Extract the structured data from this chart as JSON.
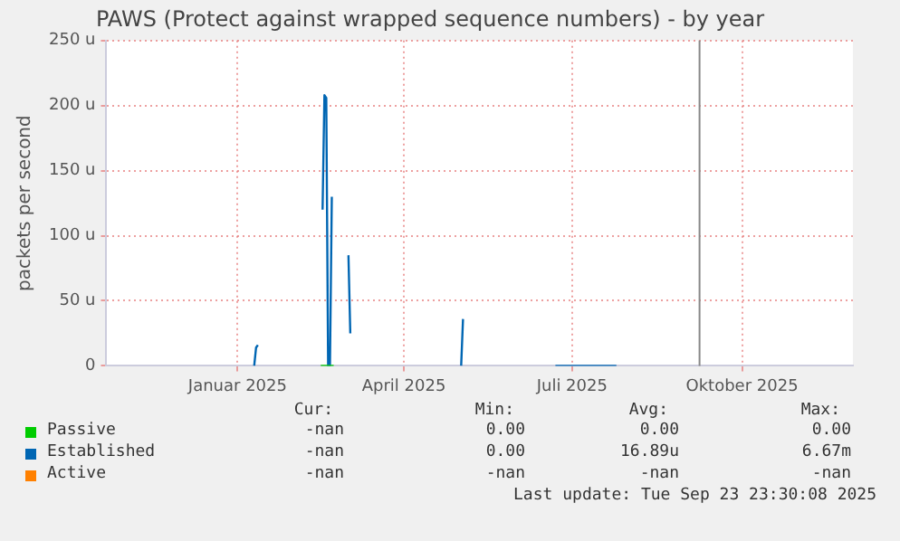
{
  "chart_data": {
    "type": "line",
    "title": "PAWS (Protect against wrapped sequence numbers) - by year",
    "ylabel": "packets per second",
    "xlim": [
      "2024-10-22",
      "2025-11-30"
    ],
    "xticks": [
      {
        "value": "2025-01-01",
        "label": "Januar 2025"
      },
      {
        "value": "2025-04-01",
        "label": "April 2025"
      },
      {
        "value": "2025-07-01",
        "label": "Juli 2025"
      },
      {
        "value": "2025-10-01",
        "label": "Oktober 2025"
      }
    ],
    "ylim": [
      0,
      250
    ],
    "yticks": [
      {
        "value": 0,
        "label": "0"
      },
      {
        "value": 50,
        "label": "50 u"
      },
      {
        "value": 100,
        "label": "100 u"
      },
      {
        "value": 150,
        "label": "150 u"
      },
      {
        "value": 200,
        "label": "200 u"
      },
      {
        "value": 250,
        "label": "250 u"
      }
    ],
    "grid": true,
    "legend": "bottom",
    "series": [
      {
        "name": "Passive",
        "color": "#00cc00",
        "x": [
          "2025-02-15",
          "2025-02-22"
        ],
        "values": [
          0,
          0
        ]
      },
      {
        "name": "Established",
        "color": "#0066b3",
        "x": [
          "2025-01-10",
          "2025-01-11",
          "2025-01-12",
          "2025-01-13",
          "2025-02-16",
          "2025-02-17",
          "2025-02-18",
          "2025-02-19",
          "2025-02-20",
          "2025-02-21",
          "2025-02-22",
          "2025-03-02",
          "2025-03-03",
          "2025-03-04",
          "2025-05-02",
          "2025-05-03",
          "2025-05-04",
          "2025-06-22",
          "2025-07-25"
        ],
        "values": [
          0,
          14,
          16,
          null,
          120,
          208,
          206,
          0,
          0,
          130,
          null,
          85,
          25,
          null,
          0,
          36,
          null,
          0,
          0
        ]
      },
      {
        "name": "Active",
        "color": "#ff8000"
      }
    ],
    "ref_lines": [
      {
        "axis": "x",
        "value": "2025-09-08",
        "color": "#888888"
      }
    ],
    "annotations": [
      "Cur:",
      "Min:",
      "Avg:",
      "Max:",
      "-nan",
      "0.00",
      "0.00",
      "0.00",
      "-nan",
      "0.00",
      "16.89u",
      "6.67m",
      "-nan",
      "-nan",
      "-nan",
      "-nan",
      "Last update: Tue Sep 23 23:30:08 2025"
    ]
  }
}
